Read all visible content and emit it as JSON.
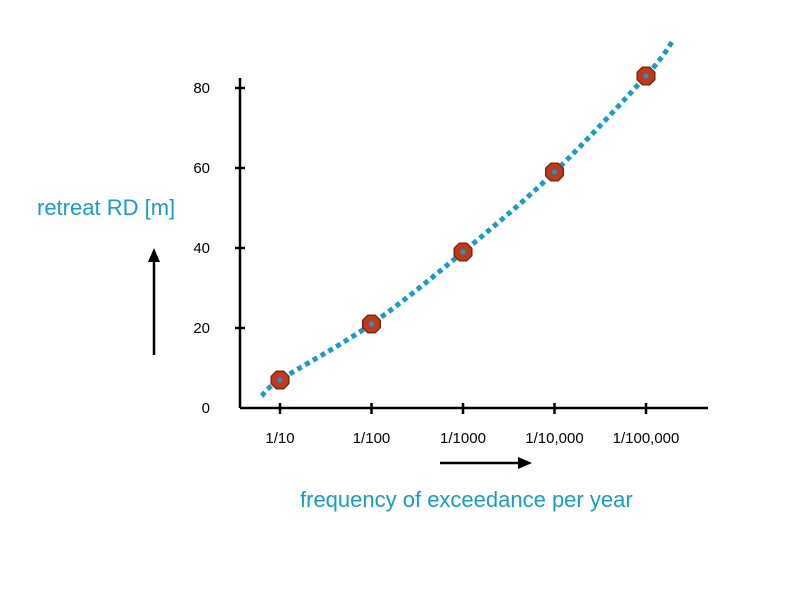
{
  "colors": {
    "accent": "#1a9bc4",
    "marker_fill": "#c0391b",
    "marker_stroke": "#7a2a10",
    "axis": "#000000"
  },
  "chart_data": {
    "type": "scatter",
    "title": "",
    "xlabel": "frequency of exceedance per year",
    "ylabel": "retreat RD [m]",
    "categories": [
      "1/10",
      "1/100",
      "1/1000",
      "1/10,000",
      "1/100,000"
    ],
    "x_scale": "log",
    "y_ticks": [
      "0",
      "20",
      "40",
      "60",
      "80"
    ],
    "ylim": [
      0,
      80
    ],
    "grid": false,
    "legend": "none",
    "series": [
      {
        "values": [
          7,
          21,
          39,
          59,
          83
        ],
        "marker": "octagon"
      }
    ],
    "trendline": {
      "style": "dotted",
      "points": [
        [
          0.8,
          3
        ],
        [
          1,
          7
        ],
        [
          2,
          21
        ],
        [
          3,
          39
        ],
        [
          4,
          59
        ],
        [
          5,
          83
        ],
        [
          5.3,
          92
        ]
      ]
    }
  }
}
